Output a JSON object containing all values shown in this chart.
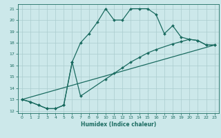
{
  "xlabel": "Humidex (Indice chaleur)",
  "bg_color": "#cce8ea",
  "grid_color": "#aaccce",
  "line_color": "#1a6b60",
  "xlim": [
    -0.5,
    23.5
  ],
  "ylim": [
    11.8,
    21.4
  ],
  "yticks": [
    12,
    13,
    14,
    15,
    16,
    17,
    18,
    19,
    20,
    21
  ],
  "xticks": [
    0,
    1,
    2,
    3,
    4,
    5,
    6,
    7,
    8,
    9,
    10,
    11,
    12,
    13,
    14,
    15,
    16,
    17,
    18,
    19,
    20,
    21,
    22,
    23
  ],
  "s1x": [
    0,
    1,
    2,
    3,
    4,
    5,
    6,
    7,
    8,
    9,
    10,
    11,
    12,
    13,
    14,
    15,
    16,
    17,
    18,
    19,
    20,
    21,
    22,
    23
  ],
  "s1y": [
    13.0,
    12.8,
    12.5,
    12.2,
    12.2,
    12.5,
    16.3,
    18.0,
    18.8,
    19.8,
    21.0,
    20.0,
    20.0,
    21.0,
    21.0,
    21.0,
    20.5,
    18.8,
    19.5,
    18.5,
    18.3,
    18.2,
    17.8,
    17.8
  ],
  "s2x": [
    0,
    1,
    2,
    3,
    4,
    5,
    6,
    7,
    10,
    11,
    12,
    13,
    14,
    15,
    16,
    18,
    19,
    20,
    21,
    22,
    23
  ],
  "s2y": [
    13.0,
    12.8,
    12.5,
    12.2,
    12.2,
    12.5,
    16.3,
    13.3,
    14.8,
    15.3,
    15.8,
    16.3,
    16.7,
    17.1,
    17.4,
    17.9,
    18.1,
    18.3,
    18.2,
    17.8,
    17.8
  ],
  "s3x": [
    0,
    23
  ],
  "s3y": [
    13.0,
    17.8
  ]
}
